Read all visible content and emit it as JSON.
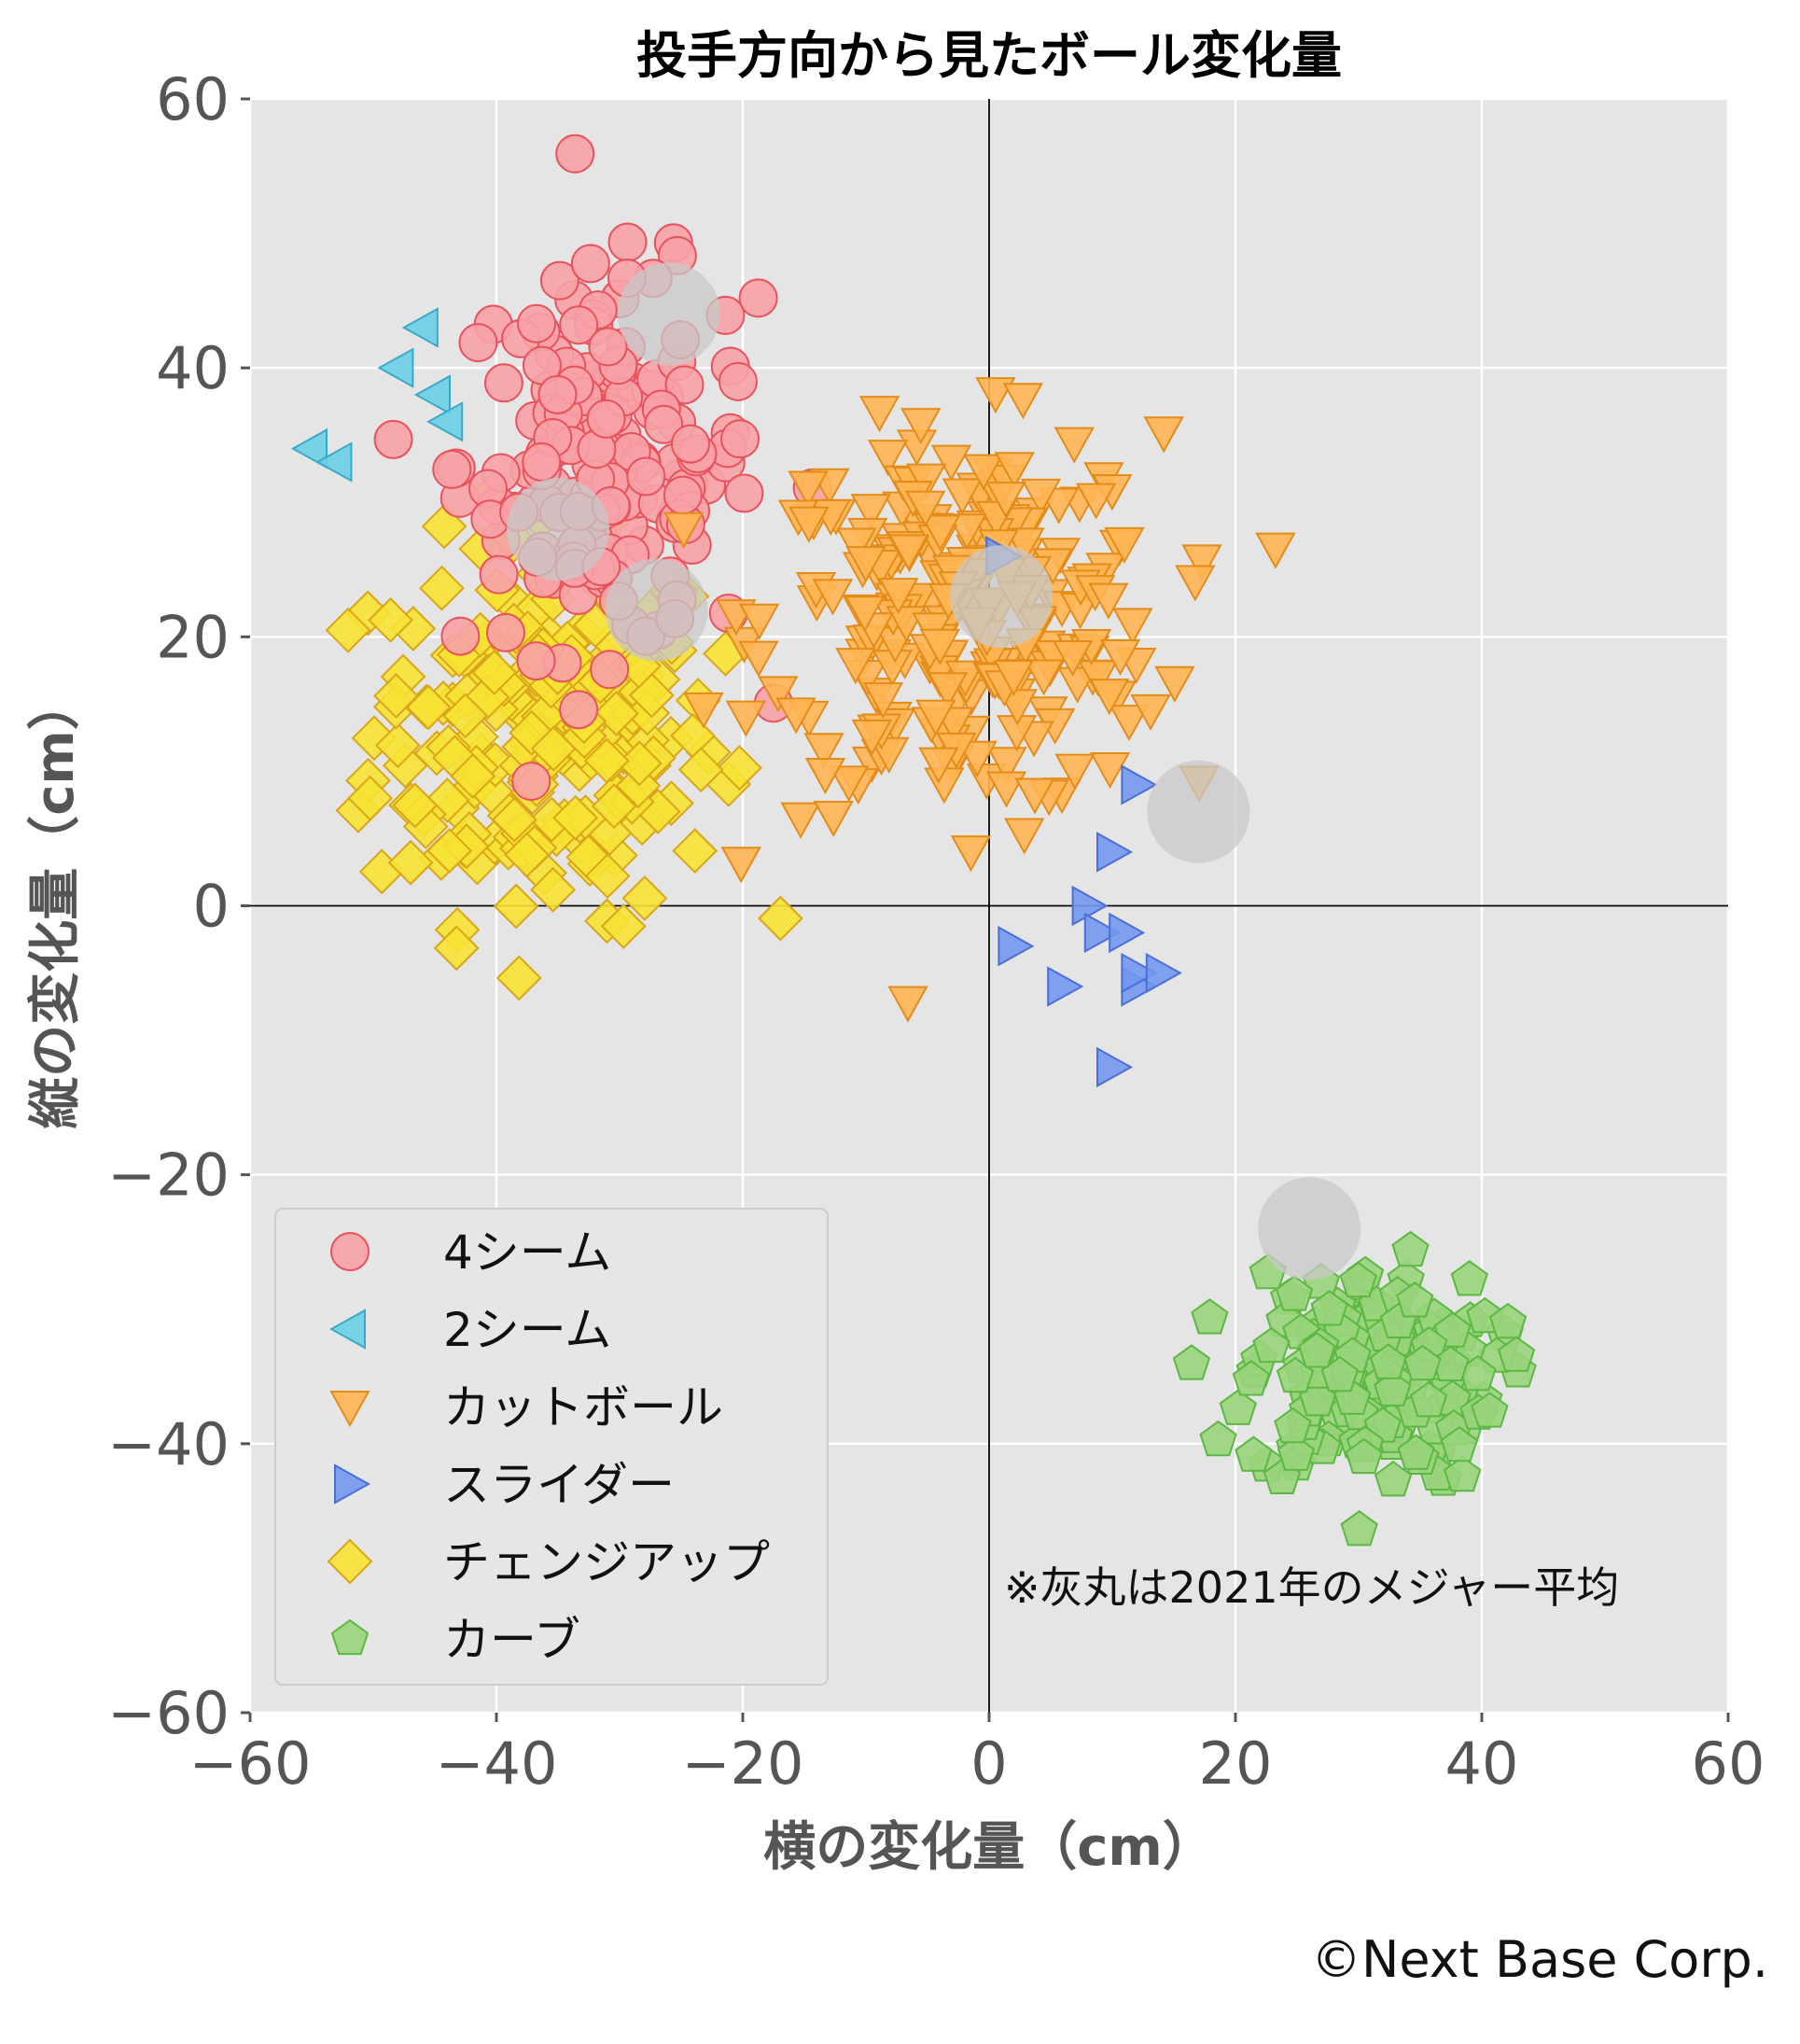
{
  "chart_data": {
    "type": "scatter",
    "title": "投手方向から見たボール変化量",
    "xlabel": "横の変化量（cm）",
    "ylabel": "縦の変化量（cm）",
    "xlim": [
      -60,
      60
    ],
    "ylim": [
      -60,
      60
    ],
    "xticks": [
      "−60",
      "−40",
      "−20",
      "0",
      "20",
      "40",
      "60"
    ],
    "yticks": [
      "60",
      "40",
      "20",
      "0",
      "−20",
      "−40",
      "−60"
    ],
    "grid": true,
    "legend_position": "lower-left",
    "background": "#e5e5e5",
    "series": [
      {
        "name": "4シーム",
        "marker": "circle",
        "color": "#f7a1a6",
        "edge": "#e8525c",
        "center": [
          -31,
          33
        ],
        "spread": [
          6,
          7
        ],
        "count": 170
      },
      {
        "name": "2シーム",
        "marker": "triangle-left",
        "color": "#6ccfe6",
        "edge": "#3aa9c9",
        "points": [
          [
            -55,
            34
          ],
          [
            -53,
            33
          ],
          [
            -48,
            40
          ],
          [
            -46,
            43
          ],
          [
            -45,
            38
          ],
          [
            -44,
            36
          ]
        ]
      },
      {
        "name": "カットボール",
        "marker": "triangle-down",
        "color": "#ffb553",
        "edge": "#e38c1a",
        "center": [
          -2,
          21
        ],
        "spread": [
          8,
          7
        ],
        "count": 260
      },
      {
        "name": "スライダー",
        "marker": "triangle-right",
        "color": "#7397ef",
        "edge": "#4a6fd6",
        "points": [
          [
            2,
            -3
          ],
          [
            6,
            -6
          ],
          [
            8,
            0
          ],
          [
            9,
            -2
          ],
          [
            10,
            4
          ],
          [
            11,
            -2
          ],
          [
            12,
            -6
          ],
          [
            12,
            -5
          ],
          [
            14,
            -5
          ],
          [
            10,
            -12
          ],
          [
            12,
            9
          ],
          [
            1,
            26
          ]
        ]
      },
      {
        "name": "チェンジアップ",
        "marker": "diamond",
        "color": "#f7e233",
        "edge": "#d9a51a",
        "center": [
          -36,
          13
        ],
        "spread": [
          7,
          7
        ],
        "count": 220
      },
      {
        "name": "カーブ",
        "marker": "pentagon",
        "color": "#98d47b",
        "edge": "#5cb843",
        "center": [
          31,
          -35
        ],
        "spread": [
          5,
          4
        ],
        "count": 170
      }
    ],
    "reference_points": [
      {
        "x": -26,
        "y": 44
      },
      {
        "x": -35,
        "y": 28
      },
      {
        "x": -27,
        "y": 22
      },
      {
        "x": 1,
        "y": 23
      },
      {
        "x": 17,
        "y": 7
      },
      {
        "x": 26,
        "y": -24
      }
    ],
    "reference_color": "#c8c8c8",
    "annotation": "※灰丸は2021年のメジャー平均"
  },
  "credit": "©Next Base Corp."
}
